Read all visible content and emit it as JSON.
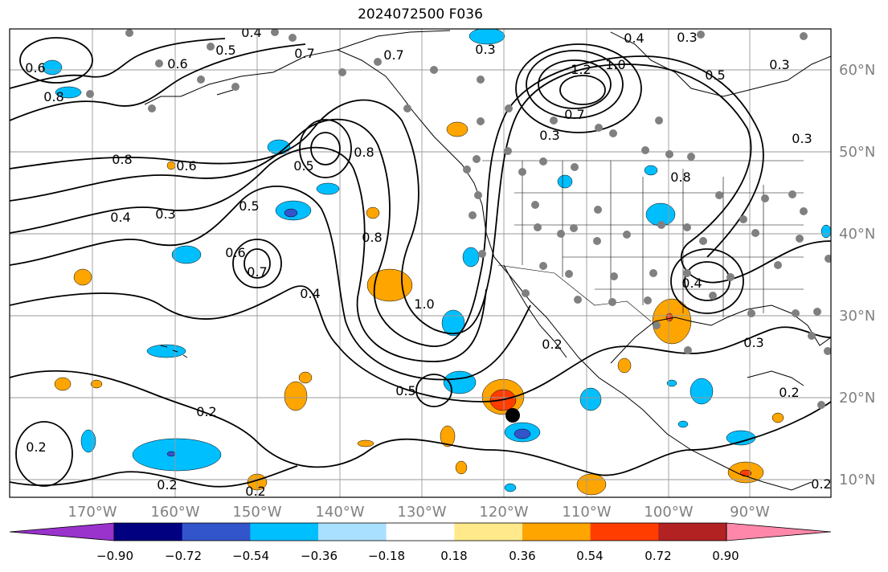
{
  "title": "2024072500 F036",
  "map": {
    "lon_labels": [
      "170°W",
      "160°W",
      "150°W",
      "140°W",
      "130°W",
      "120°W",
      "110°W",
      "100°W",
      "90°W"
    ],
    "lat_labels": [
      "60°N",
      "50°N",
      "40°N",
      "30°N",
      "20°N",
      "10°N"
    ],
    "contour_labels": [
      "0.4",
      "0.3",
      "0.5",
      "0.6",
      "0.8",
      "0.7",
      "0.3",
      "0.7",
      "0.4",
      "0.6",
      "1.2",
      "1.0",
      "0.3",
      "0.8",
      "0.5",
      "0.8",
      "0.6",
      "0.4",
      "0.3",
      "0.5",
      "0.8",
      "0.6",
      "0.7",
      "0.4",
      "1.0",
      "0.2",
      "0.5",
      "0.2",
      "0.2",
      "0.2",
      "0.2",
      "0.4",
      "0.3",
      "0.2",
      "0.3",
      "0.7",
      "0.3",
      "0.8",
      "0.5",
      "0.2"
    ],
    "colors": {
      "land_outline": "#000000",
      "grid": "#9a9a9a",
      "contour": "#000000",
      "station_dot": "#808080"
    }
  },
  "colorbar": {
    "ticks": [
      "−0.90",
      "−0.72",
      "−0.54",
      "−0.36",
      "−0.18",
      "0.18",
      "0.36",
      "0.54",
      "0.72",
      "0.90"
    ],
    "bins": [
      {
        "color": "#9933cc"
      },
      {
        "color": "#000080"
      },
      {
        "color": "#3355cc"
      },
      {
        "color": "#00bfff"
      },
      {
        "color": "#aae0ff"
      },
      {
        "color": "#ffffff"
      },
      {
        "color": "#ffe98a"
      },
      {
        "color": "#ffa500"
      },
      {
        "color": "#ff3d00"
      },
      {
        "color": "#b22222"
      },
      {
        "color": "#ff88aa"
      }
    ]
  }
}
